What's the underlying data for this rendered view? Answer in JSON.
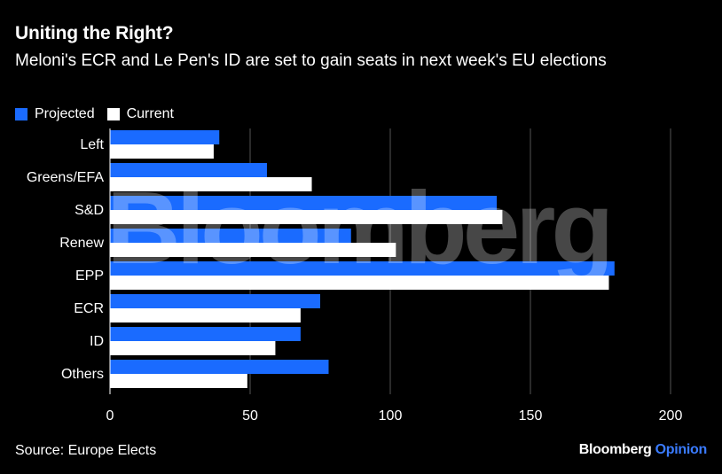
{
  "header": {
    "title": "Uniting the Right?",
    "subtitle": "Meloni's ECR and Le Pen's ID are set to gain seats in next week's EU elections"
  },
  "footer": {
    "source": "Source: Europe Elects",
    "brand_main": "Bloomberg",
    "brand_accent": "Opinion"
  },
  "watermark": "Bloomberg",
  "colors": {
    "projected": "#1a6bff",
    "current": "#ffffff",
    "background": "#000000",
    "grid": "#555555"
  },
  "chart_data": {
    "type": "bar",
    "orientation": "horizontal",
    "categories": [
      "Left",
      "Greens/EFA",
      "S&D",
      "Renew",
      "EPP",
      "ECR",
      "ID",
      "Others"
    ],
    "series": [
      {
        "name": "Projected",
        "values": [
          39,
          56,
          138,
          86,
          180,
          75,
          68,
          78
        ]
      },
      {
        "name": "Current",
        "values": [
          37,
          72,
          140,
          102,
          178,
          68,
          59,
          49
        ]
      }
    ],
    "xlim": [
      0,
      200
    ],
    "xticks": [
      "0",
      "50",
      "100",
      "150",
      "200"
    ],
    "grid": "vertical",
    "legend_position": "top-left"
  }
}
